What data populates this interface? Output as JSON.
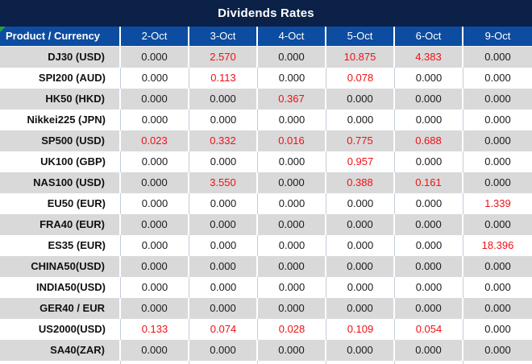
{
  "title": "Dividends Rates",
  "table": {
    "product_header": "Product / Currency",
    "date_headers": [
      "2-Oct",
      "3-Oct",
      "4-Oct",
      "5-Oct",
      "6-Oct",
      "9-Oct"
    ],
    "rows": [
      {
        "product": "DJ30 (USD)",
        "values": [
          "0.000",
          "2.570",
          "0.000",
          "10.875",
          "4.383",
          "0.000"
        ],
        "red": [
          false,
          true,
          false,
          true,
          true,
          false
        ]
      },
      {
        "product": "SPI200 (AUD)",
        "values": [
          "0.000",
          "0.113",
          "0.000",
          "0.078",
          "0.000",
          "0.000"
        ],
        "red": [
          false,
          true,
          false,
          true,
          false,
          false
        ]
      },
      {
        "product": "HK50 (HKD)",
        "values": [
          "0.000",
          "0.000",
          "0.367",
          "0.000",
          "0.000",
          "0.000"
        ],
        "red": [
          false,
          false,
          true,
          false,
          false,
          false
        ]
      },
      {
        "product": "Nikkei225 (JPN)",
        "values": [
          "0.000",
          "0.000",
          "0.000",
          "0.000",
          "0.000",
          "0.000"
        ],
        "red": [
          false,
          false,
          false,
          false,
          false,
          false
        ]
      },
      {
        "product": "SP500 (USD)",
        "values": [
          "0.023",
          "0.332",
          "0.016",
          "0.775",
          "0.688",
          "0.000"
        ],
        "red": [
          true,
          true,
          true,
          true,
          true,
          false
        ]
      },
      {
        "product": "UK100 (GBP)",
        "values": [
          "0.000",
          "0.000",
          "0.000",
          "0.957",
          "0.000",
          "0.000"
        ],
        "red": [
          false,
          false,
          false,
          true,
          false,
          false
        ]
      },
      {
        "product": "NAS100 (USD)",
        "values": [
          "0.000",
          "3.550",
          "0.000",
          "0.388",
          "0.161",
          "0.000"
        ],
        "red": [
          false,
          true,
          false,
          true,
          true,
          false
        ]
      },
      {
        "product": "EU50 (EUR)",
        "values": [
          "0.000",
          "0.000",
          "0.000",
          "0.000",
          "0.000",
          "1.339"
        ],
        "red": [
          false,
          false,
          false,
          false,
          false,
          true
        ]
      },
      {
        "product": "FRA40 (EUR)",
        "values": [
          "0.000",
          "0.000",
          "0.000",
          "0.000",
          "0.000",
          "0.000"
        ],
        "red": [
          false,
          false,
          false,
          false,
          false,
          false
        ]
      },
      {
        "product": "ES35 (EUR)",
        "values": [
          "0.000",
          "0.000",
          "0.000",
          "0.000",
          "0.000",
          "18.396"
        ],
        "red": [
          false,
          false,
          false,
          false,
          false,
          true
        ]
      },
      {
        "product": "CHINA50(USD)",
        "values": [
          "0.000",
          "0.000",
          "0.000",
          "0.000",
          "0.000",
          "0.000"
        ],
        "red": [
          false,
          false,
          false,
          false,
          false,
          false
        ]
      },
      {
        "product": "INDIA50(USD)",
        "values": [
          "0.000",
          "0.000",
          "0.000",
          "0.000",
          "0.000",
          "0.000"
        ],
        "red": [
          false,
          false,
          false,
          false,
          false,
          false
        ]
      },
      {
        "product": "GER40 / EUR",
        "values": [
          "0.000",
          "0.000",
          "0.000",
          "0.000",
          "0.000",
          "0.000"
        ],
        "red": [
          false,
          false,
          false,
          false,
          false,
          false
        ]
      },
      {
        "product": "US2000(USD)",
        "values": [
          "0.133",
          "0.074",
          "0.028",
          "0.109",
          "0.054",
          "0.000"
        ],
        "red": [
          true,
          true,
          true,
          true,
          true,
          false
        ]
      },
      {
        "product": "SA40(ZAR)",
        "values": [
          "0.000",
          "0.000",
          "0.000",
          "0.000",
          "0.000",
          "0.000"
        ],
        "red": [
          false,
          false,
          false,
          false,
          false,
          false
        ]
      }
    ]
  },
  "colors": {
    "title_bar_navy": "#0b2148",
    "header_blue": "#0d4da1",
    "row_gray": "#d9d9d9",
    "row_white": "#ffffff",
    "value_red": "#f01014",
    "value_black": "#1a1a1a",
    "corner_flag_green": "#1ca43c"
  }
}
